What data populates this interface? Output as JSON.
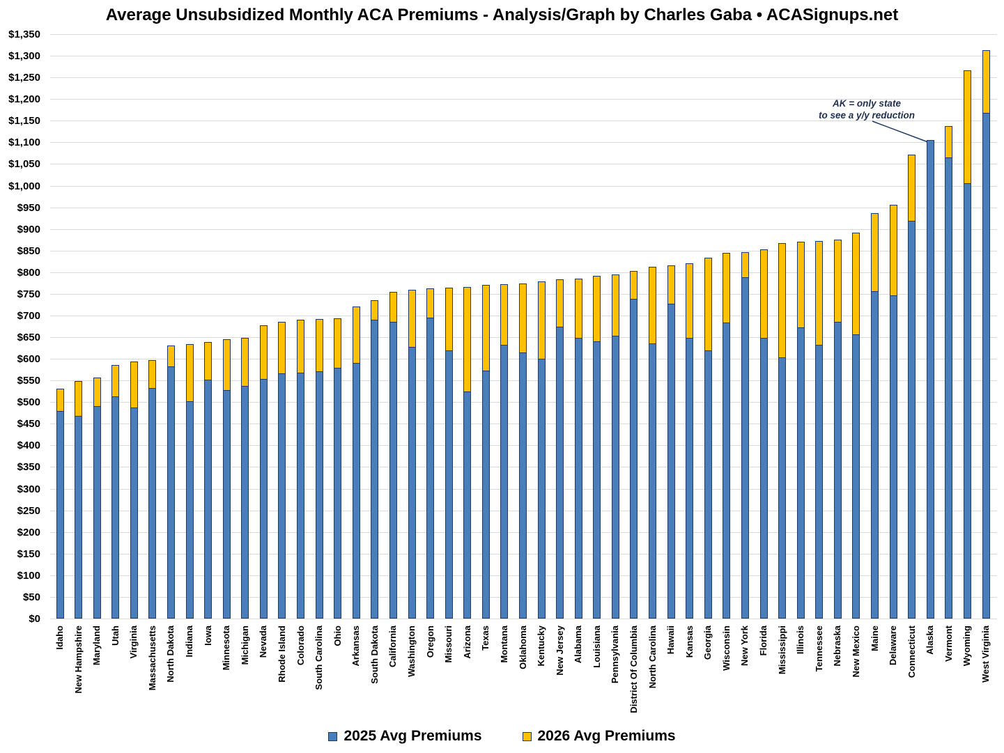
{
  "title": "Average Unsubsidized Monthly ACA Premiums - Analysis/Graph by Charles Gaba • ACASignups.net",
  "annotation": {
    "line1": "AK = only state",
    "line2": "to see a y/y reduction",
    "target_state": "Alaska"
  },
  "colors": {
    "bar_2025": "#4a7ebb",
    "bar_2026": "#ffc000",
    "bar_border": "#1f3864",
    "gridline": "#d9d9d9",
    "leader_line": "#1f3864"
  },
  "chart_data": {
    "type": "bar",
    "subtype": "overlay-columns (2026 bar drawn behind 2025 bar, visible portion = yearly increase)",
    "title": "Average Unsubsidized Monthly ACA Premiums - Analysis/Graph by Charles Gaba • ACASignups.net",
    "xlabel": "",
    "ylabel": "",
    "ylim": [
      0,
      1350
    ],
    "ytick_step": 50,
    "ytick_format": "$#,##0",
    "grid": "horizontal",
    "legend_position": "bottom",
    "categories": [
      "Idaho",
      "New Hampshire",
      "Maryland",
      "Utah",
      "Virginia",
      "Massachusetts",
      "North Dakota",
      "Indiana",
      "Iowa",
      "Minnesota",
      "Michigan",
      "Nevada",
      "Rhode Island",
      "Colorado",
      "South Carolina",
      "Ohio",
      "Arkansas",
      "South Dakota",
      "California",
      "Washington",
      "Oregon",
      "Missouri",
      "Arizona",
      "Texas",
      "Montana",
      "Oklahoma",
      "Kentucky",
      "New Jersey",
      "Alabama",
      "Louisiana",
      "Pennsylvania",
      "District Of Columbia",
      "North Carolina",
      "Hawaii",
      "Kansas",
      "Georgia",
      "Wisconsin",
      "New York",
      "Florida",
      "Mississippi",
      "Illinois",
      "Tennessee",
      "Nebraska",
      "New Mexico",
      "Maine",
      "Delaware",
      "Connecticut",
      "Alaska",
      "Vermont",
      "Wyoming",
      "West Virginia"
    ],
    "series": [
      {
        "name": "2025 Avg Premiums",
        "color": "#4a7ebb",
        "values": [
          480,
          468,
          491,
          514,
          487,
          533,
          583,
          502,
          552,
          527,
          538,
          553,
          567,
          568,
          571,
          579,
          590,
          691,
          685,
          628,
          695,
          619,
          524,
          573,
          632,
          614,
          600,
          674,
          648,
          640,
          653,
          739,
          636,
          727,
          649,
          620,
          684,
          789,
          648,
          603,
          672,
          633,
          685,
          657,
          756,
          747,
          918,
          1105,
          1066,
          1006,
          1168
        ]
      },
      {
        "name": "2026 Avg Premiums",
        "color": "#ffc000",
        "values": [
          531,
          549,
          557,
          586,
          594,
          597,
          631,
          634,
          639,
          646,
          648,
          678,
          686,
          691,
          692,
          694,
          721,
          735,
          755,
          759,
          763,
          764,
          766,
          770,
          772,
          774,
          779,
          783,
          785,
          792,
          795,
          803,
          813,
          815,
          821,
          834,
          844,
          847,
          852,
          867,
          870,
          872,
          876,
          892,
          937,
          956,
          1072,
          null,
          1138,
          1266,
          1313
        ]
      }
    ],
    "note": "Alaska's 2026 bar is lower than its 2025 bar, so it is hidden behind the blue column (only state with a year-over-year reduction)."
  }
}
